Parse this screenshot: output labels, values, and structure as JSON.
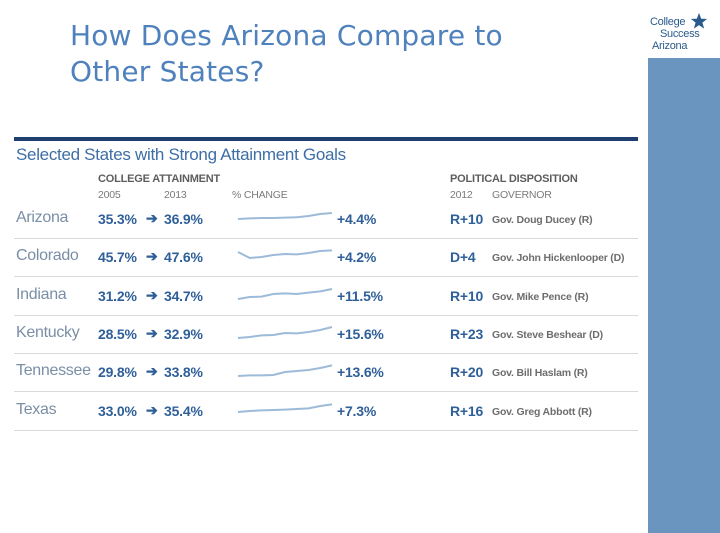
{
  "slide": {
    "title_line1": "How Does Arizona Compare to",
    "title_line2": "Other States?"
  },
  "logo": {
    "line1": "College",
    "line2": "Success",
    "line3": "Arizona"
  },
  "colors": {
    "title": "#4f81bd",
    "accent": "#2f5f99",
    "sidebar": "#6a95bf",
    "rule": "#1f3f6e"
  },
  "table": {
    "title": "Selected States with Strong Attainment Goals",
    "header_attainment": "COLLEGE ATTAINMENT",
    "header_political": "POLITICAL DISPOSITION",
    "sub_2005": "2005",
    "sub_2013": "2013",
    "sub_change": "% CHANGE",
    "sub_2012": "2012",
    "sub_governor": "GOVERNOR",
    "arrow_glyph": "➔",
    "rows": [
      {
        "state": "Arizona",
        "y2005": "35.3%",
        "y2013": "36.9%",
        "change": "+4.4%",
        "party": "R+10",
        "governor": "Gov. Doug Ducey (R)",
        "trend": [
          0.55,
          0.52,
          0.5,
          0.5,
          0.48,
          0.46,
          0.4,
          0.3,
          0.25
        ]
      },
      {
        "state": "Colorado",
        "y2005": "45.7%",
        "y2013": "47.6%",
        "change": "+4.2%",
        "party": "D+4",
        "governor": "Gov. John Hickenlooper (D)",
        "trend": [
          0.3,
          0.6,
          0.55,
          0.45,
          0.4,
          0.42,
          0.35,
          0.25,
          0.22
        ]
      },
      {
        "state": "Indiana",
        "y2005": "31.2%",
        "y2013": "34.7%",
        "change": "+11.5%",
        "party": "R+10",
        "governor": "Gov. Mike Pence (R)",
        "trend": [
          0.7,
          0.6,
          0.58,
          0.45,
          0.42,
          0.45,
          0.38,
          0.32,
          0.2
        ]
      },
      {
        "state": "Kentucky",
        "y2005": "28.5%",
        "y2013": "32.9%",
        "change": "+15.6%",
        "party": "R+23",
        "governor": "Gov. Steve Beshear (D)",
        "trend": [
          0.75,
          0.7,
          0.62,
          0.6,
          0.5,
          0.52,
          0.45,
          0.35,
          0.2
        ]
      },
      {
        "state": "Tennessee",
        "y2005": "29.8%",
        "y2013": "33.8%",
        "change": "+13.6%",
        "party": "R+20",
        "governor": "Gov. Bill Haslam (R)",
        "trend": [
          0.75,
          0.72,
          0.72,
          0.7,
          0.55,
          0.5,
          0.45,
          0.35,
          0.22
        ]
      },
      {
        "state": "Texas",
        "y2005": "33.0%",
        "y2013": "35.4%",
        "change": "+7.3%",
        "party": "R+16",
        "governor": "Gov. Greg Abbott (R)",
        "trend": [
          0.6,
          0.55,
          0.52,
          0.5,
          0.48,
          0.45,
          0.42,
          0.3,
          0.22
        ]
      }
    ]
  }
}
